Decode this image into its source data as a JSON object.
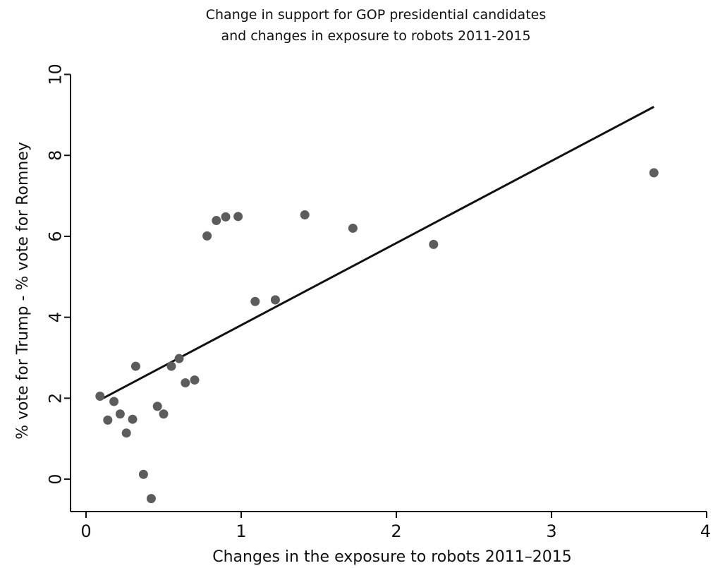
{
  "chart_data": {
    "type": "scatter",
    "title_lines": [
      "Change in support for GOP presidential candidates",
      "and changes in exposure to robots 2011-2015"
    ],
    "xlabel": "Changes in the exposure to robots 2011–2015",
    "ylabel": "% vote for Trump - % vote for Romney",
    "xlim": [
      -0.1,
      4
    ],
    "ylim": [
      -0.8,
      10.2
    ],
    "xticks": [
      0,
      1,
      2,
      3,
      4
    ],
    "yticks": [
      0,
      2,
      4,
      6,
      8,
      10
    ],
    "grid": false,
    "marker_color": "#5c5c5c",
    "line_color": "#111111",
    "points": [
      {
        "x": 0.09,
        "y": 2.05
      },
      {
        "x": 0.14,
        "y": 1.46
      },
      {
        "x": 0.18,
        "y": 1.92
      },
      {
        "x": 0.22,
        "y": 1.61
      },
      {
        "x": 0.26,
        "y": 1.14
      },
      {
        "x": 0.3,
        "y": 1.48
      },
      {
        "x": 0.32,
        "y": 2.79
      },
      {
        "x": 0.37,
        "y": 0.12
      },
      {
        "x": 0.42,
        "y": -0.48
      },
      {
        "x": 0.46,
        "y": 1.8
      },
      {
        "x": 0.5,
        "y": 1.61
      },
      {
        "x": 0.55,
        "y": 2.79
      },
      {
        "x": 0.6,
        "y": 2.98
      },
      {
        "x": 0.64,
        "y": 2.38
      },
      {
        "x": 0.7,
        "y": 2.45
      },
      {
        "x": 0.78,
        "y": 6.01
      },
      {
        "x": 0.84,
        "y": 6.39
      },
      {
        "x": 0.9,
        "y": 6.48
      },
      {
        "x": 0.98,
        "y": 6.49
      },
      {
        "x": 1.09,
        "y": 4.39
      },
      {
        "x": 1.22,
        "y": 4.43
      },
      {
        "x": 1.41,
        "y": 6.53
      },
      {
        "x": 1.72,
        "y": 6.2
      },
      {
        "x": 2.24,
        "y": 5.8
      },
      {
        "x": 3.66,
        "y": 7.57
      }
    ],
    "fit_line": {
      "x": [
        0.1,
        3.66
      ],
      "y": [
        1.98,
        9.2
      ]
    }
  }
}
